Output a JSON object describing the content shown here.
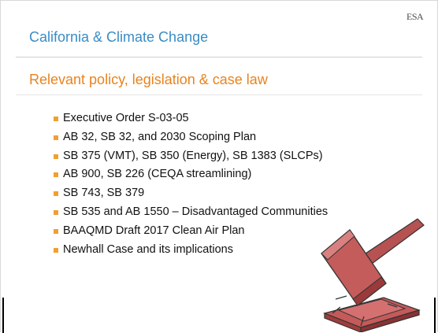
{
  "header": {
    "logo": "ESA",
    "title": "California & Climate Change",
    "subtitle": "Relevant policy, legislation & case law"
  },
  "bullets": [
    "Executive Order S-03-05",
    "AB 32, SB 32, and 2030 Scoping Plan",
    "SB 375 (VMT), SB 350 (Energy), SB 1383 (SLCPs)",
    "AB 900, SB 226 (CEQA streamlining)",
    "SB 743, SB 379",
    "SB 535 and AB 1550 – Disadvantaged Communities",
    "BAAQMD Draft 2017 Clean Air Plan",
    "Newhall Case and its implications"
  ]
}
